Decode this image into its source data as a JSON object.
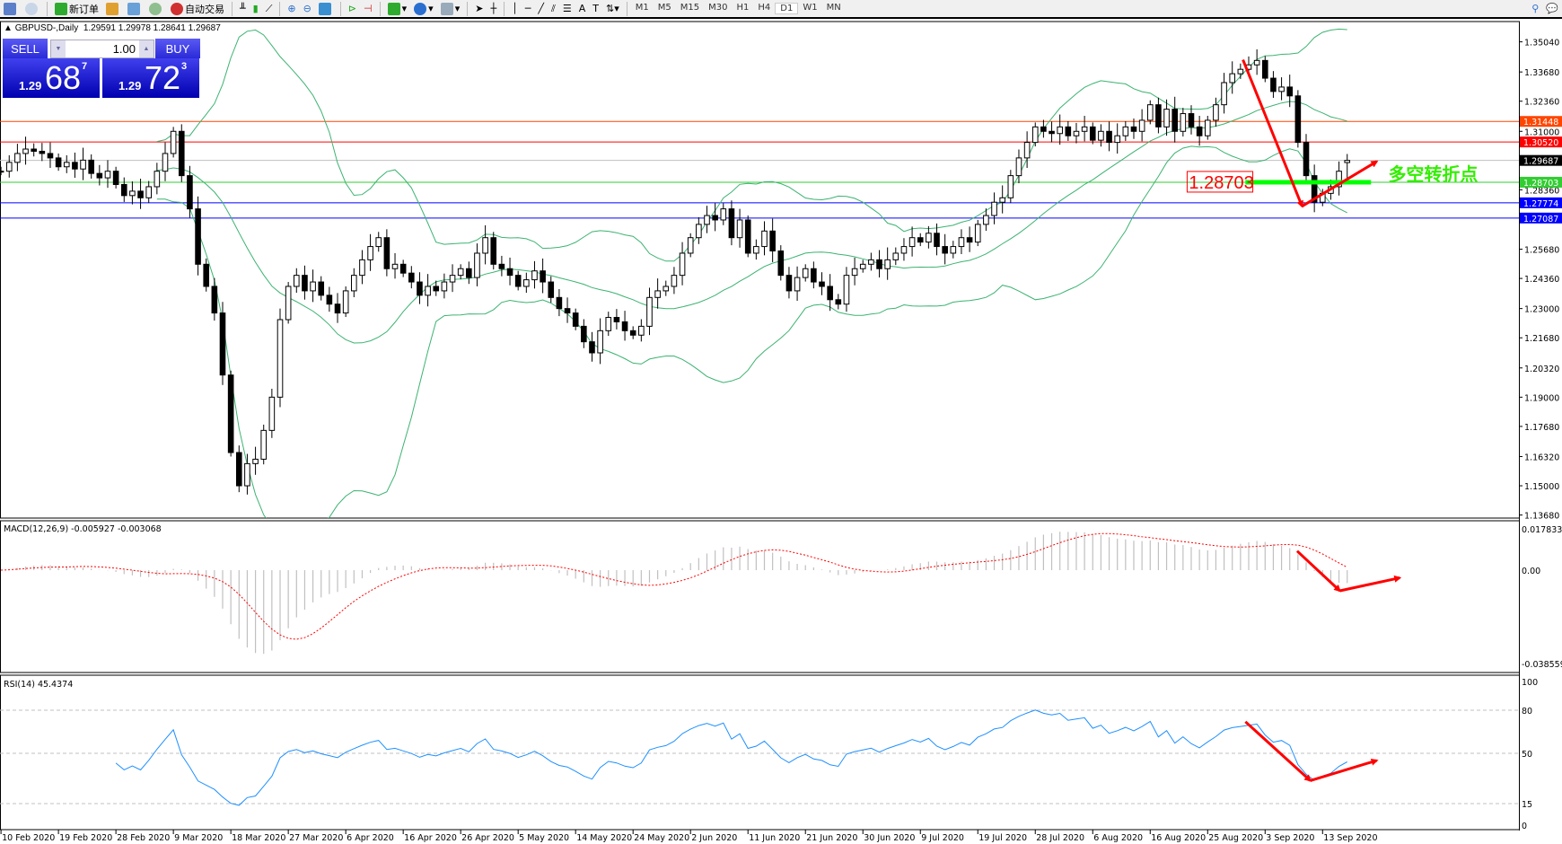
{
  "toolbar": {
    "new_order": "新订单",
    "auto_trading": "自动交易",
    "timeframes": [
      "M1",
      "M5",
      "M15",
      "M30",
      "H1",
      "H4",
      "D1",
      "W1",
      "MN"
    ],
    "active_timeframe": "D1"
  },
  "chart_info": {
    "symbol": "GBPUSD-,Daily",
    "ohlc": "1.29591 1.29978 1.28641 1.29687"
  },
  "trade_panel": {
    "sell": "SELL",
    "buy": "BUY",
    "lot": "1.00",
    "bid_prefix": "1.29",
    "bid_big": "68",
    "bid_sup": "7",
    "ask_prefix": "1.29",
    "ask_big": "72",
    "ask_sup": "3"
  },
  "chart_data": {
    "type": "candlestick",
    "price_range": [
      1.1368,
      1.3504
    ],
    "price_ticks": [
      "1.35040",
      "1.33680",
      "1.32360",
      "1.31000",
      "1.28360",
      "1.25680",
      "1.24360",
      "1.23000",
      "1.21680",
      "1.20320",
      "1.19000",
      "1.17680",
      "1.16320",
      "1.15000",
      "1.13680"
    ],
    "date_labels": [
      "10 Feb 2020",
      "19 Feb 2020",
      "28 Feb 2020",
      "9 Mar 2020",
      "18 Mar 2020",
      "27 Mar 2020",
      "6 Apr 2020",
      "16 Apr 2020",
      "26 Apr 2020",
      "5 May 2020",
      "14 May 2020",
      "24 May 2020",
      "2 Jun 2020",
      "11 Jun 2020",
      "21 Jun 2020",
      "30 Jun 2020",
      "9 Jul 2020",
      "19 Jul 2020",
      "28 Jul 2020",
      "6 Aug 2020",
      "16 Aug 2020",
      "25 Aug 2020",
      "3 Sep 2020",
      "13 Sep 2020"
    ],
    "bars_per_date_label": 7,
    "closes": [
      1.292,
      1.296,
      1.3,
      1.302,
      1.301,
      1.3,
      1.298,
      1.294,
      1.296,
      1.293,
      1.297,
      1.291,
      1.289,
      1.292,
      1.286,
      1.281,
      1.283,
      1.28,
      1.285,
      1.292,
      1.3,
      1.31,
      1.29,
      1.275,
      1.25,
      1.24,
      1.228,
      1.2,
      1.165,
      1.15,
      1.16,
      1.162,
      1.175,
      1.19,
      1.225,
      1.24,
      1.245,
      1.238,
      1.242,
      1.236,
      1.232,
      1.228,
      1.238,
      1.245,
      1.252,
      1.258,
      1.262,
      1.248,
      1.25,
      1.246,
      1.242,
      1.236,
      1.24,
      1.238,
      1.242,
      1.245,
      1.248,
      1.244,
      1.255,
      1.262,
      1.25,
      1.248,
      1.245,
      1.24,
      1.243,
      1.247,
      1.242,
      1.235,
      1.23,
      1.228,
      1.222,
      1.215,
      1.21,
      1.22,
      1.226,
      1.224,
      1.22,
      1.218,
      1.222,
      1.235,
      1.238,
      1.24,
      1.245,
      1.255,
      1.262,
      1.268,
      1.272,
      1.27,
      1.275,
      1.262,
      1.27,
      1.255,
      1.258,
      1.265,
      1.256,
      1.245,
      1.238,
      1.244,
      1.248,
      1.242,
      1.24,
      1.234,
      1.232,
      1.245,
      1.248,
      1.25,
      1.252,
      1.248,
      1.252,
      1.255,
      1.258,
      1.262,
      1.26,
      1.264,
      1.258,
      1.255,
      1.258,
      1.262,
      1.26,
      1.268,
      1.272,
      1.278,
      1.28,
      1.29,
      1.298,
      1.305,
      1.312,
      1.31,
      1.309,
      1.312,
      1.308,
      1.31,
      1.312,
      1.306,
      1.31,
      1.305,
      1.308,
      1.312,
      1.31,
      1.315,
      1.322,
      1.312,
      1.32,
      1.31,
      1.318,
      1.312,
      1.308,
      1.315,
      1.322,
      1.332,
      1.336,
      1.338,
      1.34,
      1.342,
      1.334,
      1.328,
      1.33,
      1.326,
      1.305,
      1.29,
      1.278,
      1.282,
      1.285,
      1.292,
      1.29687
    ],
    "last_bar": {
      "open": 1.29591,
      "high": 1.29978,
      "low": 1.28641,
      "close": 1.29687
    },
    "bollinger": {
      "period": 20,
      "deviation": 2,
      "color": "#3cb371"
    },
    "hlines": [
      {
        "price": 1.31448,
        "label": "1.31448",
        "color": "#ff4500",
        "label_bg": "#ff4500"
      },
      {
        "price": 1.3052,
        "label": "1.30520",
        "color": "#ff0000",
        "label_bg": "#ff0000"
      },
      {
        "price": 1.29687,
        "label": "1.29687",
        "color": "#c0c0c0",
        "label_bg": "#000000"
      },
      {
        "price": 1.28703,
        "label": "1.28703",
        "color": "#32cd32",
        "label_bg": "#32cd32"
      },
      {
        "price": 1.27774,
        "label": "1.27774",
        "color": "#0000ff",
        "label_bg": "#0000ff"
      },
      {
        "price": 1.27087,
        "label": "1.27087",
        "color": "#0000ff",
        "label_bg": "#0000ff"
      }
    ],
    "annotations": {
      "price_box": {
        "text": "1.28703",
        "color": "#ff0000",
        "bar_from": 144.5,
        "bar_to": 152.5,
        "price": 1.28703
      },
      "pivot_line": {
        "bar_from": 151.6,
        "bar_to": 166.9,
        "price": 1.28703,
        "color": "#00ff00"
      },
      "pivot_text": {
        "text": "多空转折点",
        "color": "#33ee00",
        "bar": 169,
        "price": 1.28703
      },
      "arrow_color": "#ff0000",
      "price_arrow": [
        [
          151.3,
          1.3423
        ],
        [
          158.5,
          1.2762
        ],
        [
          167.6,
          1.2964
        ]
      ],
      "macd_arrow": [
        [
          157.9,
          0.00775
        ],
        [
          163.1,
          -0.00837
        ],
        [
          170.4,
          -0.0031
        ]
      ],
      "rsi_arrow": [
        [
          151.6,
          72
        ],
        [
          159.5,
          31
        ],
        [
          167.6,
          45
        ]
      ]
    },
    "macd": {
      "label": "MACD(12,26,9) -0.005927 -0.003068",
      "fast": 12,
      "slow": 26,
      "signal": 9,
      "range": [
        -0.038559,
        0.017833
      ],
      "ticks": [
        "0.017833",
        "0.00",
        "-0.038559"
      ],
      "histogram_color": "#c0c0c0",
      "signal_color": "#ff0000"
    },
    "rsi": {
      "label": "RSI(14) 45.4374",
      "period": 14,
      "range": [
        0,
        100
      ],
      "levels": [
        80,
        50,
        15
      ],
      "ticks": [
        "100",
        "80",
        "50",
        "15",
        "0"
      ],
      "color": "#1e90ff"
    }
  }
}
